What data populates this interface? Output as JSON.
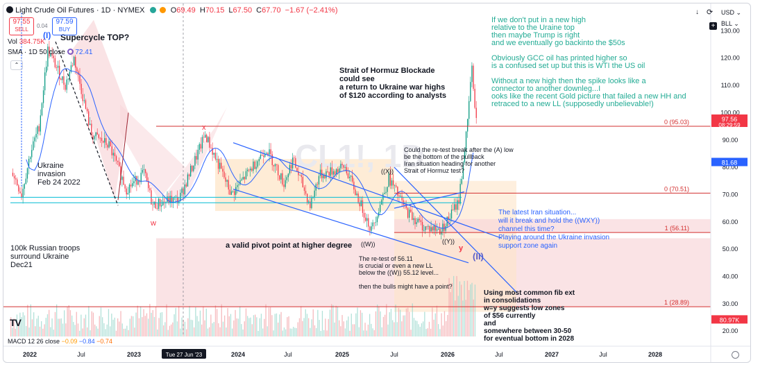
{
  "header": {
    "symbol_title": "Light Crude Oil Futures · 1D · NYMEX",
    "ohlc": {
      "o_label": "O",
      "o": "69.49",
      "h_label": "H",
      "h": "70.15",
      "l_label": "L",
      "l": "67.50",
      "c_label": "C",
      "c": "67.70",
      "change": "−1.67 (−2.41%)"
    },
    "sell_price": "97.55",
    "sell_label": "SELL",
    "spread": "0.04",
    "buy_price": "97.59",
    "buy_label": "BUY",
    "vol_label": "Vol",
    "vol_value": "384.75K",
    "sma_label": "SMA · 1D 50 close",
    "sma_value": "72.41",
    "currency": "USD",
    "bll": "BLL",
    "macd_label": "MACD 12 26 close",
    "macd_vals": [
      "−0.09",
      "−0.84",
      "−0.74"
    ],
    "date_label": "Tue 27 Jun '23"
  },
  "colors": {
    "up": "#089981",
    "down": "#f23645",
    "sma": "#2962ff",
    "wave_blue": "#2962ff",
    "red_label": "#f23645",
    "green_note": "#22ab94",
    "box_pink": "#f8d7da",
    "box_orange": "#fde5c8"
  },
  "chart_data": {
    "type": "candlestick",
    "title": "Light Crude Oil Futures · 1D · NYMEX",
    "xlabel": "",
    "ylabel": "",
    "x_ticks": [
      "2022",
      "Jul",
      "2023",
      "2024",
      "Jul",
      "2025",
      "Jul",
      "2026",
      "Jul",
      "2027",
      "Jul",
      "2028"
    ],
    "y_ticks": [
      "130.00",
      "120.00",
      "110.00",
      "100.00",
      "90.00",
      "80.00",
      "70.00",
      "60.00",
      "50.00",
      "40.00",
      "30.00",
      "20.00"
    ],
    "ylim": [
      18,
      139
    ],
    "price_path": [
      {
        "date": "2021-11",
        "price": 78
      },
      {
        "date": "2021-12",
        "price": 70
      },
      {
        "date": "2022-01",
        "price": 85
      },
      {
        "date": "2022-02",
        "price": 95
      },
      {
        "date": "2022-03",
        "price": 123
      },
      {
        "date": "2022-05",
        "price": 110
      },
      {
        "date": "2022-06",
        "price": 120
      },
      {
        "date": "2022-08",
        "price": 92
      },
      {
        "date": "2022-10",
        "price": 88
      },
      {
        "date": "2022-12",
        "price": 72
      },
      {
        "date": "2023-02",
        "price": 78
      },
      {
        "date": "2023-03",
        "price": 66
      },
      {
        "date": "2023-05",
        "price": 68
      },
      {
        "date": "2023-06",
        "price": 68
      },
      {
        "date": "2023-09",
        "price": 92
      },
      {
        "date": "2023-12",
        "price": 70
      },
      {
        "date": "2024-04",
        "price": 87
      },
      {
        "date": "2024-06",
        "price": 74
      },
      {
        "date": "2024-07",
        "price": 83
      },
      {
        "date": "2024-09",
        "price": 66
      },
      {
        "date": "2024-10",
        "price": 77
      },
      {
        "date": "2025-01",
        "price": 80
      },
      {
        "date": "2025-04",
        "price": 57
      },
      {
        "date": "2025-06",
        "price": 76
      },
      {
        "date": "2025-08",
        "price": 64
      },
      {
        "date": "2025-10",
        "price": 58
      },
      {
        "date": "2025-12",
        "price": 57
      },
      {
        "date": "2026-01",
        "price": 62
      },
      {
        "date": "2026-02",
        "price": 68
      },
      {
        "date": "2026-03",
        "price": 96
      },
      {
        "date": "2026-03-15",
        "price": 117
      },
      {
        "date": "2026-04",
        "price": 97.56
      }
    ],
    "last_price": "97.56",
    "last_price_countdown": "08:29:59",
    "sma_value": "81.68",
    "macd_value": "80.97K",
    "fib_levels": [
      {
        "label": "0 (95.03)",
        "value": 95.03
      },
      {
        "label": "0 (70.51)",
        "value": 70.51
      },
      {
        "label": "1 (56.11)",
        "value": 56.11
      },
      {
        "label": "1 (28.89)",
        "value": 28.89
      }
    ],
    "wave_labels": [
      "(I)",
      "(II)",
      "x",
      "w",
      "y",
      "((X))",
      "((W))",
      "((Y))"
    ],
    "annotations": {
      "supercycle": "Supercycle TOP?",
      "ukraine": [
        "Ukraine",
        "invasion",
        "Feb 24 2022"
      ],
      "troops": [
        "100k Russian troops",
        "surround Ukraine",
        "Dec21"
      ],
      "pivot": "a valid pivot point at higher degree",
      "hormuz": [
        "Strait of Hormuz Blockade",
        "could see",
        "a return to Ukraine war highs",
        "of $120 according to analysts"
      ],
      "retest": [
        "Could the re-test break after the (A) low",
        "be the bottom of the pullback",
        "Iran situation heading for another",
        "Strait of Hormuz test?"
      ],
      "re56": [
        "The re-test of 56.11",
        "is crucial or even a new LL",
        "below the ((W)) 55.12 level...",
        "",
        "then the bulls might have a point?"
      ],
      "fib_ext": [
        "Using most common fib ext",
        "in consolidations",
        "w=y suggests low zones",
        "of $56 currently",
        "and",
        "somewhere between 30-50",
        "for eventual bottom in 2028"
      ],
      "iran_blue": [
        "The latest Iran situation...",
        "will it break and hold the ((WXY))",
        "channel this time?",
        "Playing around the Ukraine invasion",
        "support zone again"
      ],
      "green": [
        "If we don't put in a new high",
        "relative to the Uraine top",
        "then maybe Trump is right",
        "and we eventually go backinto the $50s",
        "",
        "Obviously GCC oil has printed higher so",
        "is a confused set up but this is WTI the US oil",
        "",
        "Without a new high then the spike looks like a",
        "connector to another downleg...I",
        "ooks like the recent Gold picture that failed a new HH and",
        "retraced to a new LL (supposedly unbelievable!)"
      ]
    }
  }
}
